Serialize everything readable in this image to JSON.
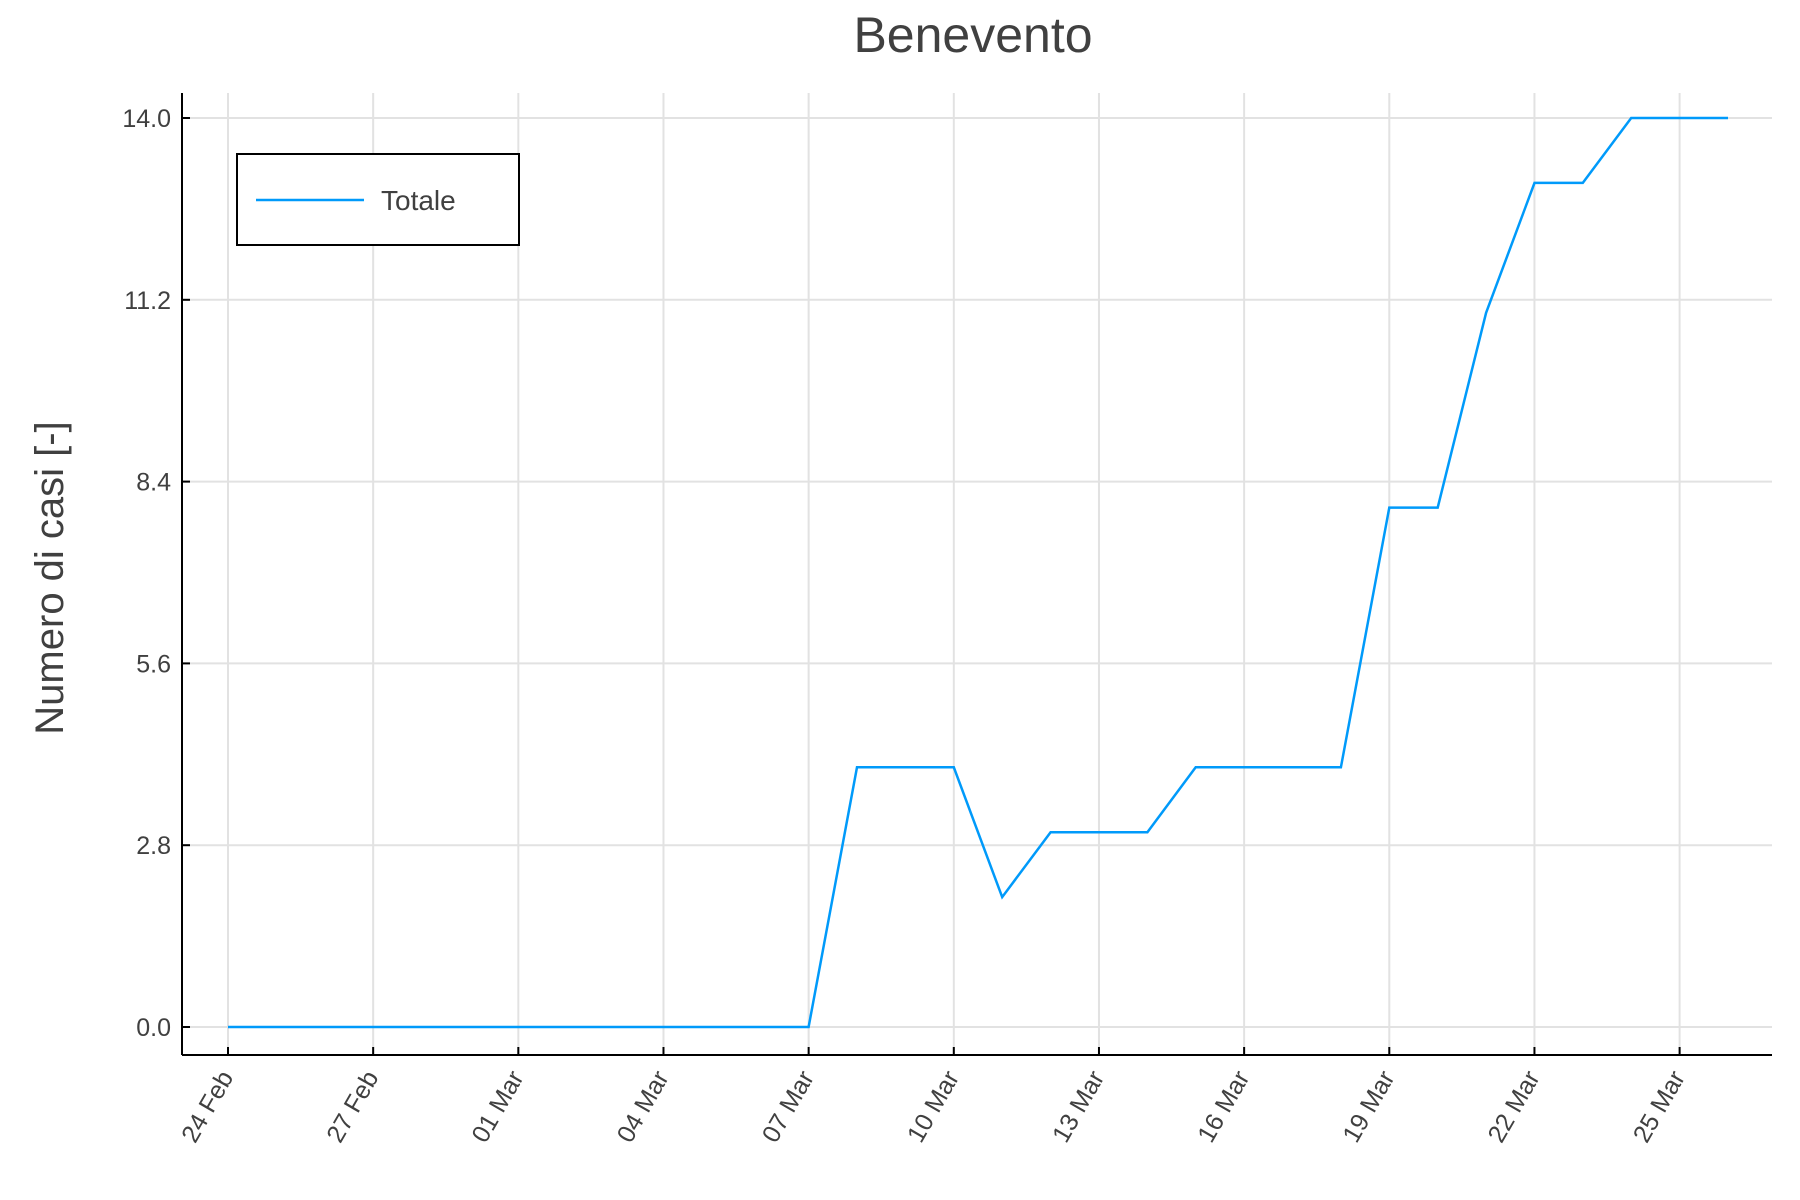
{
  "chart_data": {
    "type": "line",
    "title": "Benevento",
    "xlabel": "",
    "ylabel": "Numero di casi [-]",
    "x_ticks": [
      "24 Feb",
      "27 Feb",
      "01 Mar",
      "04 Mar",
      "07 Mar",
      "10 Mar",
      "13 Mar",
      "16 Mar",
      "19 Mar",
      "22 Mar",
      "25 Mar"
    ],
    "y_ticks": [
      "0.0",
      "2.8",
      "5.6",
      "8.4",
      "11.2",
      "14.0"
    ],
    "ylim": [
      0,
      14
    ],
    "xlim": [
      "2020-02-24",
      "2020-03-26"
    ],
    "grid": true,
    "legend_position": "top-left",
    "series": [
      {
        "name": "Totale",
        "color": "#009AFA",
        "x": [
          "2020-02-24",
          "2020-02-25",
          "2020-02-26",
          "2020-02-27",
          "2020-02-28",
          "2020-02-29",
          "2020-03-01",
          "2020-03-02",
          "2020-03-03",
          "2020-03-04",
          "2020-03-05",
          "2020-03-06",
          "2020-03-07",
          "2020-03-08",
          "2020-03-09",
          "2020-03-10",
          "2020-03-11",
          "2020-03-12",
          "2020-03-13",
          "2020-03-14",
          "2020-03-15",
          "2020-03-16",
          "2020-03-17",
          "2020-03-18",
          "2020-03-19",
          "2020-03-20",
          "2020-03-21",
          "2020-03-22",
          "2020-03-23",
          "2020-03-24",
          "2020-03-25",
          "2020-03-26"
        ],
        "y": [
          0,
          0,
          0,
          0,
          0,
          0,
          0,
          0,
          0,
          0,
          0,
          0,
          0,
          4,
          4,
          4,
          2,
          3,
          3,
          3,
          4,
          4,
          4,
          4,
          8,
          8,
          11,
          13,
          13,
          14,
          14,
          14
        ]
      }
    ]
  }
}
